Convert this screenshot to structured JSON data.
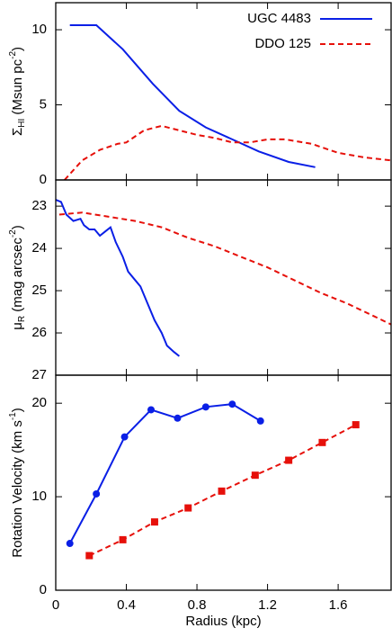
{
  "chart_data": [
    {
      "type": "line",
      "legend": "upper right",
      "ylabel": [
        "Σ",
        {
          "sub": "HI"
        },
        " (Msun pc",
        {
          "sup": "-2"
        },
        ")"
      ],
      "xlim": [
        0,
        1.9
      ],
      "xticks": [
        0,
        0.4,
        0.8,
        1.2,
        1.6
      ],
      "ylim": [
        0,
        11.8
      ],
      "yticks": [
        0,
        5,
        10
      ],
      "series": [
        {
          "name": "UGC 4483",
          "color": "#0a1fe6",
          "linestyle": "solid",
          "x": [
            0.08,
            0.23,
            0.38,
            0.55,
            0.7,
            0.85,
            1.0,
            1.15,
            1.32,
            1.47
          ],
          "values": [
            10.3,
            10.3,
            8.7,
            6.4,
            4.6,
            3.5,
            2.7,
            1.9,
            1.2,
            0.85
          ]
        },
        {
          "name": "DDO 125",
          "color": "#e6100a",
          "linestyle": "dashed",
          "x": [
            0.05,
            0.15,
            0.25,
            0.35,
            0.4,
            0.5,
            0.6,
            0.7,
            0.8,
            0.9,
            1.0,
            1.1,
            1.2,
            1.3,
            1.45,
            1.6,
            1.75,
            1.9
          ],
          "values": [
            0,
            1.3,
            2.0,
            2.4,
            2.5,
            3.3,
            3.6,
            3.3,
            3.0,
            2.8,
            2.5,
            2.5,
            2.7,
            2.7,
            2.4,
            1.8,
            1.5,
            1.3
          ]
        }
      ]
    },
    {
      "type": "line",
      "ylabel": [
        "μ",
        {
          "sub": "R"
        },
        " (mag arcsec",
        {
          "sup": "-2"
        },
        ")"
      ],
      "xlim": [
        0,
        1.9
      ],
      "xticks": [
        0,
        0.4,
        0.8,
        1.2,
        1.6
      ],
      "ylim": [
        27,
        22.38
      ],
      "yticks": [
        23,
        24,
        25,
        26,
        27
      ],
      "series": [
        {
          "name": "UGC 4483",
          "color": "#0a1fe6",
          "linestyle": "solid",
          "x": [
            0,
            0.03,
            0.06,
            0.1,
            0.14,
            0.16,
            0.19,
            0.22,
            0.25,
            0.28,
            0.31,
            0.34,
            0.38,
            0.41,
            0.45,
            0.48,
            0.52,
            0.56,
            0.6,
            0.63,
            0.67,
            0.7
          ],
          "values": [
            22.85,
            22.9,
            23.2,
            23.35,
            23.3,
            23.45,
            23.55,
            23.55,
            23.7,
            23.6,
            23.5,
            23.85,
            24.2,
            24.55,
            24.75,
            24.9,
            25.3,
            25.7,
            26.0,
            26.3,
            26.45,
            26.55
          ]
        },
        {
          "name": "DDO 125",
          "color": "#e6100a",
          "linestyle": "dashed",
          "x": [
            0.02,
            0.15,
            0.3,
            0.45,
            0.6,
            0.75,
            0.9,
            1.05,
            1.2,
            1.35,
            1.5,
            1.65,
            1.8,
            1.9
          ],
          "values": [
            23.2,
            23.15,
            23.25,
            23.35,
            23.5,
            23.75,
            23.95,
            24.2,
            24.45,
            24.75,
            25.05,
            25.3,
            25.6,
            25.8
          ]
        }
      ]
    },
    {
      "type": "line",
      "xlabel": "Radius (kpc)",
      "ylabel": [
        "Rotation Velocity (km s",
        {
          "sup": "-1"
        },
        ")"
      ],
      "xlim": [
        0,
        1.9
      ],
      "xticks": [
        0,
        0.4,
        0.8,
        1.2,
        1.6
      ],
      "ylim": [
        0,
        23
      ],
      "yticks": [
        0,
        10,
        20
      ],
      "series": [
        {
          "name": "UGC 4483",
          "color": "#0a1fe6",
          "linestyle": "solid",
          "marker": "circle",
          "x": [
            0.08,
            0.23,
            0.39,
            0.54,
            0.69,
            0.85,
            1.0,
            1.16
          ],
          "values": [
            5.0,
            10.3,
            16.4,
            19.3,
            18.4,
            19.6,
            19.9,
            18.1
          ]
        },
        {
          "name": "DDO 125",
          "color": "#e6100a",
          "linestyle": "dashed",
          "marker": "square",
          "x": [
            0.19,
            0.38,
            0.56,
            0.75,
            0.94,
            1.13,
            1.32,
            1.51,
            1.7
          ],
          "values": [
            3.7,
            5.4,
            7.3,
            8.8,
            10.6,
            12.3,
            13.9,
            15.8,
            17.7
          ]
        }
      ]
    }
  ]
}
